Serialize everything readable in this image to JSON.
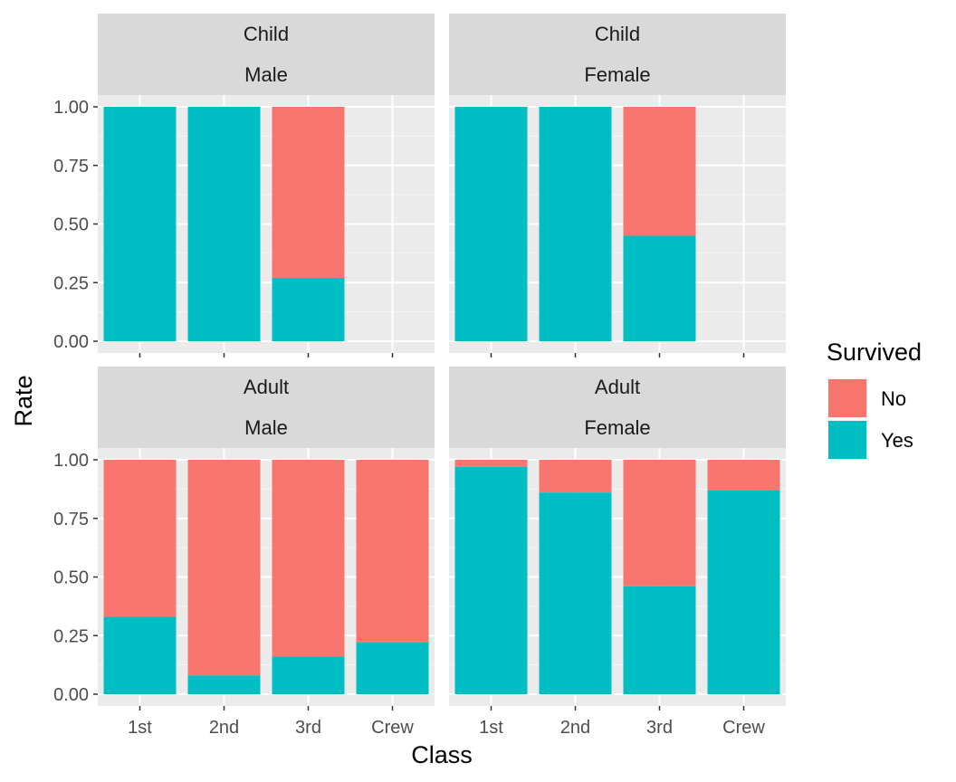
{
  "chart_data": {
    "type": "bar",
    "stacked": true,
    "xlabel": "Class",
    "ylabel": "Rate",
    "ylim": [
      0,
      1
    ],
    "y_ticks": [
      "0.00",
      "0.25",
      "0.50",
      "0.75",
      "1.00"
    ],
    "y_tick_values": [
      0,
      0.25,
      0.5,
      0.75,
      1.0
    ],
    "categories": [
      "1st",
      "2nd",
      "3rd",
      "Crew"
    ],
    "legend": {
      "title": "Survived",
      "position": "right",
      "entries": [
        {
          "label": "No",
          "color": "#F8766D"
        },
        {
          "label": "Yes",
          "color": "#00BFC4"
        }
      ]
    },
    "grid": true,
    "facets": [
      {
        "row": "Child",
        "col": "Male",
        "yes_rate": [
          1.0,
          1.0,
          0.27,
          null
        ]
      },
      {
        "row": "Child",
        "col": "Female",
        "yes_rate": [
          1.0,
          1.0,
          0.45,
          null
        ]
      },
      {
        "row": "Adult",
        "col": "Male",
        "yes_rate": [
          0.33,
          0.08,
          0.16,
          0.22
        ]
      },
      {
        "row": "Adult",
        "col": "Female",
        "yes_rate": [
          0.97,
          0.86,
          0.46,
          0.87
        ]
      }
    ]
  }
}
